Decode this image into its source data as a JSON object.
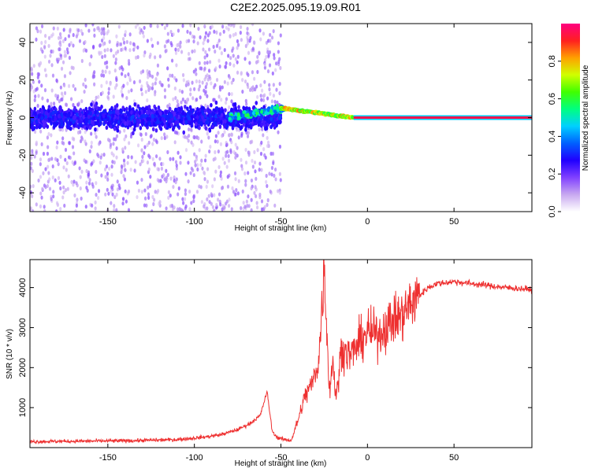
{
  "title": "C2E2.2025.095.19.09.R01",
  "chart_data": [
    {
      "type": "heatmap",
      "xlabel": "Height of straight line (km)",
      "ylabel": "Frequency (Hz)",
      "xlim": [
        -195,
        95
      ],
      "ylim": [
        -50,
        50
      ],
      "xticks": [
        -150,
        -100,
        -50,
        0,
        50
      ],
      "xtick_labels": [
        "-150",
        "-100",
        "-50",
        "0",
        "50"
      ],
      "yticks": [
        -40,
        -20,
        0,
        20,
        40
      ],
      "ytick_labels": [
        "-40",
        "-20",
        "0",
        "20",
        "40"
      ],
      "colorbar": {
        "label": "Normalized spectral amplitude",
        "range": [
          0,
          1
        ],
        "ticks": [
          0.0,
          0.2,
          0.4,
          0.6,
          0.8
        ],
        "tick_labels": [
          "0.0",
          "0.2",
          "0.4",
          "0.6",
          "0.8"
        ],
        "colors": [
          "#ffffff",
          "#c8a8f0",
          "#8040ff",
          "#2000ff",
          "#0060ff",
          "#00d0ff",
          "#00ff80",
          "#40ff00",
          "#d0ff00",
          "#ffa000",
          "#ff2020",
          "#ff0080"
        ]
      },
      "features": [
        {
          "name": "noise band",
          "x_range": [
            -195,
            -50
          ],
          "frequency_hz": 0,
          "amplitude": 0.15
        },
        {
          "name": "transition",
          "x_range": [
            -80,
            -48
          ],
          "frequency_hz": [
            0,
            5
          ],
          "amplitude": 0.5
        },
        {
          "name": "signal ramp",
          "x_range": [
            -50,
            -8
          ],
          "frequency_hz": [
            5,
            0
          ],
          "amplitude": 0.75
        },
        {
          "name": "carrier line",
          "x_range": [
            -8,
            95
          ],
          "frequency_hz": 0,
          "amplitude": 0.95
        }
      ]
    },
    {
      "type": "line",
      "xlabel": "Height of straight line (km)",
      "ylabel": "SNR (10 * v/v)",
      "xlim": [
        -195,
        95
      ],
      "ylim": [
        0,
        4700
      ],
      "xticks": [
        -150,
        -100,
        -50,
        0,
        50
      ],
      "xtick_labels": [
        "-150",
        "-100",
        "-50",
        "0",
        "50"
      ],
      "yticks": [
        1000,
        2000,
        3000,
        4000
      ],
      "ytick_labels": [
        "1000",
        "2000",
        "3000",
        "4000"
      ],
      "color": "#ee3030",
      "x": [
        -195,
        -170,
        -140,
        -110,
        -95,
        -85,
        -75,
        -68,
        -62,
        -58,
        -55,
        -52,
        -48,
        -44,
        -40,
        -36,
        -32,
        -28,
        -25,
        -22,
        -20,
        -18,
        -15,
        -10,
        -5,
        0,
        5,
        10,
        15,
        20,
        25,
        30,
        35,
        40,
        50,
        60,
        70,
        80,
        95
      ],
      "values": [
        150,
        160,
        170,
        200,
        260,
        320,
        450,
        600,
        800,
        1400,
        400,
        250,
        200,
        180,
        700,
        1300,
        1600,
        2200,
        4600,
        1400,
        2200,
        1200,
        2500,
        2300,
        2600,
        2900,
        2800,
        3000,
        3200,
        3300,
        3600,
        3800,
        4000,
        4100,
        4150,
        4100,
        4050,
        4000,
        3950
      ]
    }
  ]
}
